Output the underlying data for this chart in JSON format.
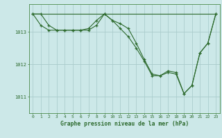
{
  "title": "Graphe pression niveau de la mer (hPa)",
  "xlim": [
    -0.5,
    23.5
  ],
  "ylim": [
    1010.5,
    1013.85
  ],
  "yticks": [
    1011,
    1012,
    1013
  ],
  "xticks": [
    0,
    1,
    2,
    3,
    4,
    5,
    6,
    7,
    8,
    9,
    10,
    11,
    12,
    13,
    14,
    15,
    16,
    17,
    18,
    19,
    20,
    21,
    22,
    23
  ],
  "bg_color": "#cce8e8",
  "grid_color_major": "#aacccc",
  "grid_color_minor": "#bbdddd",
  "line_color": "#2d6a2d",
  "line1": [
    1013.55,
    1013.55,
    1013.2,
    1013.05,
    1013.05,
    1013.05,
    1013.05,
    1013.1,
    1013.35,
    1013.55,
    1013.35,
    1013.25,
    1013.1,
    1012.65,
    1012.15,
    1011.7,
    1011.65,
    1011.8,
    1011.75,
    1011.1,
    1011.35,
    1012.35,
    1012.65,
    1013.55
  ],
  "line2": [
    1013.55,
    1013.2,
    1013.05,
    1013.05,
    1013.05,
    1013.05,
    1013.05,
    1013.05,
    1013.2,
    1013.55,
    1013.35,
    1013.1,
    1012.85,
    1012.5,
    1012.1,
    1011.65,
    1011.65,
    1011.75,
    1011.7,
    1011.1,
    1011.35,
    1012.35,
    1012.65,
    1013.55
  ],
  "line3": [
    1013.55,
    1013.55,
    1013.55,
    1013.55,
    1013.55,
    1013.55,
    1013.55,
    1013.55,
    1013.55,
    1013.55,
    1013.55,
    1013.55,
    1013.55,
    1013.55,
    1013.55,
    1013.55,
    1013.55,
    1013.55,
    1013.55,
    1013.55,
    1013.55,
    1013.55,
    1013.55,
    1013.55
  ]
}
